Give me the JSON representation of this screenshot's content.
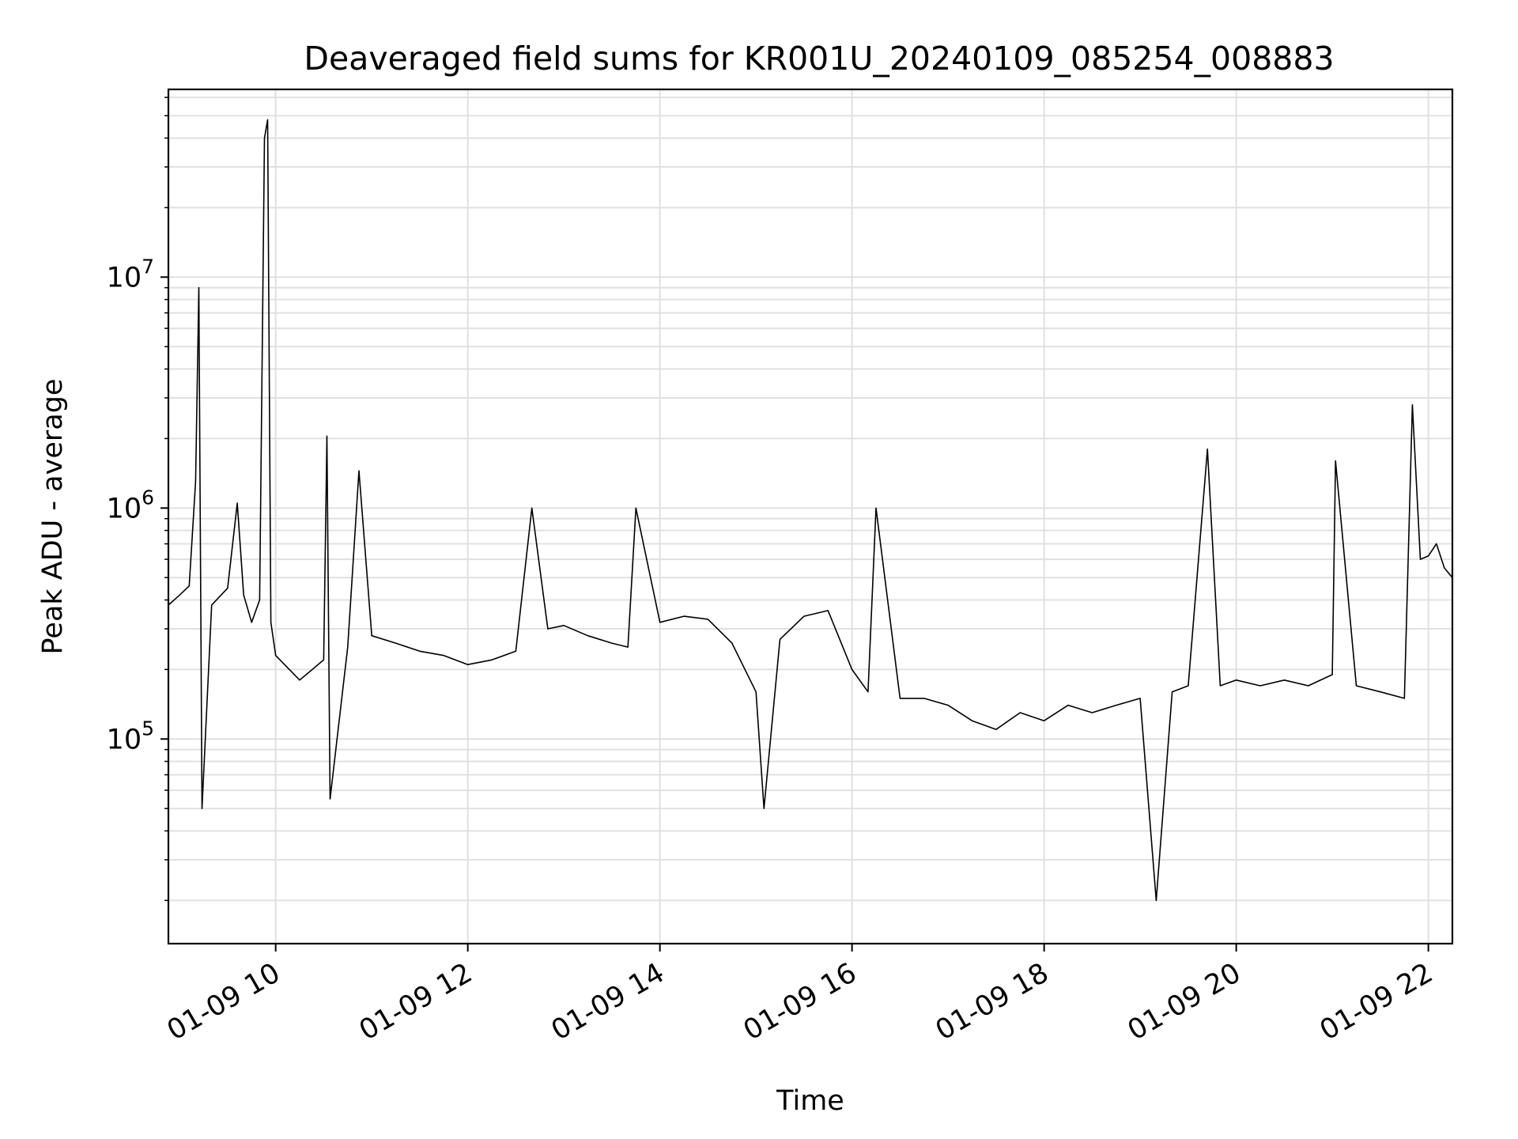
{
  "chart_data": {
    "type": "line",
    "title": "Deaveraged field sums for KR001U_20240109_085254_008883",
    "xlabel": "Time",
    "ylabel": "Peak ADU - average",
    "xlim": [
      "2024-01-09 08:53",
      "2024-01-09 22:15"
    ],
    "ylim": [
      13000,
      65000000
    ],
    "yscale": "log",
    "grid": true,
    "line_color": "#000000",
    "grid_color": "#e0e0e0",
    "x_ticks": [
      {
        "value": "2024-01-09 10:00",
        "label": "01-09 10"
      },
      {
        "value": "2024-01-09 12:00",
        "label": "01-09 12"
      },
      {
        "value": "2024-01-09 14:00",
        "label": "01-09 14"
      },
      {
        "value": "2024-01-09 16:00",
        "label": "01-09 16"
      },
      {
        "value": "2024-01-09 18:00",
        "label": "01-09 18"
      },
      {
        "value": "2024-01-09 20:00",
        "label": "01-09 20"
      },
      {
        "value": "2024-01-09 22:00",
        "label": "01-09 22"
      }
    ],
    "y_ticks": [
      {
        "value": 100000,
        "base": "10",
        "exp": "5"
      },
      {
        "value": 1000000,
        "base": "10",
        "exp": "6"
      },
      {
        "value": 10000000,
        "base": "10",
        "exp": "7"
      }
    ],
    "series": [
      {
        "points": [
          [
            "2024-01-09 08:53",
            380000
          ],
          [
            "2024-01-09 09:00",
            420000
          ],
          [
            "2024-01-09 09:06",
            460000
          ],
          [
            "2024-01-09 09:10",
            1300000
          ],
          [
            "2024-01-09 09:12",
            9000000
          ],
          [
            "2024-01-09 09:14",
            50000
          ],
          [
            "2024-01-09 09:20",
            380000
          ],
          [
            "2024-01-09 09:30",
            450000
          ],
          [
            "2024-01-09 09:36",
            1050000
          ],
          [
            "2024-01-09 09:40",
            420000
          ],
          [
            "2024-01-09 09:45",
            320000
          ],
          [
            "2024-01-09 09:50",
            400000
          ],
          [
            "2024-01-09 09:53",
            40000000
          ],
          [
            "2024-01-09 09:55",
            48000000
          ],
          [
            "2024-01-09 09:57",
            320000
          ],
          [
            "2024-01-09 10:00",
            230000
          ],
          [
            "2024-01-09 10:15",
            180000
          ],
          [
            "2024-01-09 10:30",
            220000
          ],
          [
            "2024-01-09 10:32",
            2050000
          ],
          [
            "2024-01-09 10:34",
            55000
          ],
          [
            "2024-01-09 10:45",
            250000
          ],
          [
            "2024-01-09 10:52",
            1450000
          ],
          [
            "2024-01-09 11:00",
            280000
          ],
          [
            "2024-01-09 11:15",
            260000
          ],
          [
            "2024-01-09 11:30",
            240000
          ],
          [
            "2024-01-09 11:45",
            230000
          ],
          [
            "2024-01-09 12:00",
            210000
          ],
          [
            "2024-01-09 12:15",
            220000
          ],
          [
            "2024-01-09 12:30",
            240000
          ],
          [
            "2024-01-09 12:40",
            1000000
          ],
          [
            "2024-01-09 12:50",
            300000
          ],
          [
            "2024-01-09 13:00",
            310000
          ],
          [
            "2024-01-09 13:15",
            280000
          ],
          [
            "2024-01-09 13:30",
            260000
          ],
          [
            "2024-01-09 13:40",
            250000
          ],
          [
            "2024-01-09 13:45",
            1000000
          ],
          [
            "2024-01-09 14:00",
            320000
          ],
          [
            "2024-01-09 14:15",
            340000
          ],
          [
            "2024-01-09 14:30",
            330000
          ],
          [
            "2024-01-09 14:45",
            260000
          ],
          [
            "2024-01-09 15:00",
            160000
          ],
          [
            "2024-01-09 15:05",
            50000
          ],
          [
            "2024-01-09 15:15",
            270000
          ],
          [
            "2024-01-09 15:30",
            340000
          ],
          [
            "2024-01-09 15:45",
            360000
          ],
          [
            "2024-01-09 16:00",
            200000
          ],
          [
            "2024-01-09 16:10",
            160000
          ],
          [
            "2024-01-09 16:15",
            1000000
          ],
          [
            "2024-01-09 16:30",
            150000
          ],
          [
            "2024-01-09 16:45",
            150000
          ],
          [
            "2024-01-09 17:00",
            140000
          ],
          [
            "2024-01-09 17:15",
            120000
          ],
          [
            "2024-01-09 17:30",
            110000
          ],
          [
            "2024-01-09 17:45",
            130000
          ],
          [
            "2024-01-09 18:00",
            120000
          ],
          [
            "2024-01-09 18:15",
            140000
          ],
          [
            "2024-01-09 18:30",
            130000
          ],
          [
            "2024-01-09 18:45",
            140000
          ],
          [
            "2024-01-09 19:00",
            150000
          ],
          [
            "2024-01-09 19:10",
            20000
          ],
          [
            "2024-01-09 19:20",
            160000
          ],
          [
            "2024-01-09 19:30",
            170000
          ],
          [
            "2024-01-09 19:42",
            1800000
          ],
          [
            "2024-01-09 19:50",
            170000
          ],
          [
            "2024-01-09 20:00",
            180000
          ],
          [
            "2024-01-09 20:15",
            170000
          ],
          [
            "2024-01-09 20:30",
            180000
          ],
          [
            "2024-01-09 20:45",
            170000
          ],
          [
            "2024-01-09 21:00",
            190000
          ],
          [
            "2024-01-09 21:02",
            1600000
          ],
          [
            "2024-01-09 21:15",
            170000
          ],
          [
            "2024-01-09 21:30",
            160000
          ],
          [
            "2024-01-09 21:45",
            150000
          ],
          [
            "2024-01-09 21:50",
            2800000
          ],
          [
            "2024-01-09 21:55",
            600000
          ],
          [
            "2024-01-09 22:00",
            620000
          ],
          [
            "2024-01-09 22:05",
            700000
          ],
          [
            "2024-01-09 22:10",
            550000
          ],
          [
            "2024-01-09 22:15",
            500000
          ]
        ]
      }
    ]
  }
}
